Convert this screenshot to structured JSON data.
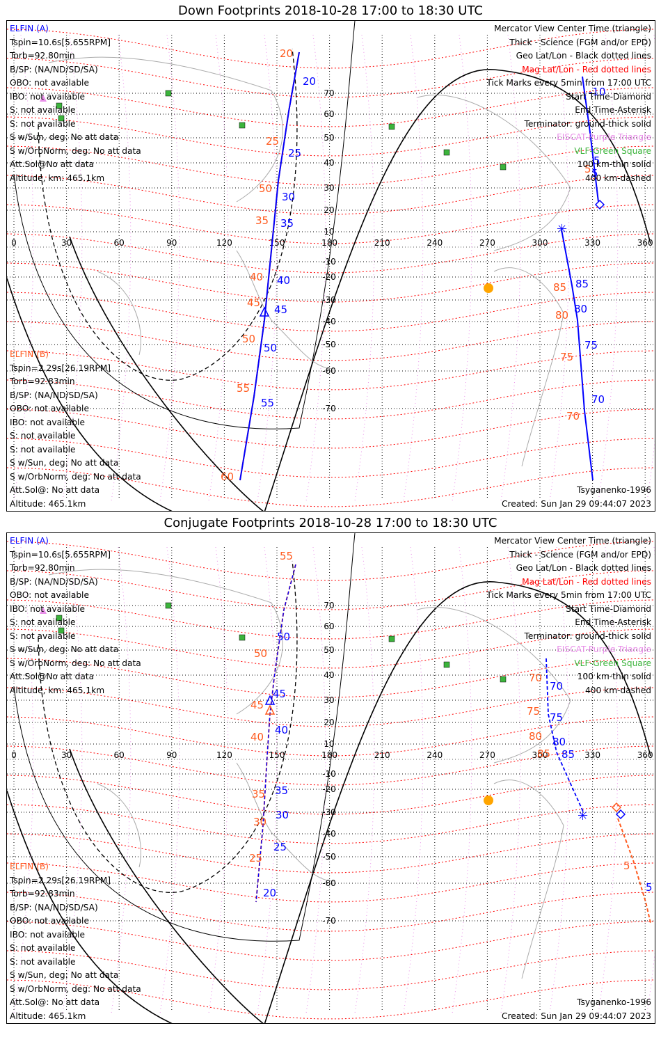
{
  "panels": [
    {
      "title": "Down Footprints 2018-10-28 17:00 to 18:30 UTC",
      "elfin_a": {
        "name": "ELFIN (A)",
        "lines": [
          "Tspin=10.6s[5.655RPM]",
          "Torb=92.80min",
          "B/SP: (NA/ND/SD/SA)",
          "OBO: not available",
          "IBO: not available",
          "S: not available",
          "S: not available",
          "S w/Sun, deg: No att data",
          "S w/OrbNorm, deg: No att data",
          "Att.Sol@No att data",
          "Altitude, km: 465.1km"
        ]
      },
      "elfin_b": {
        "name": "ELFIN (B)",
        "lines": [
          "Tspin=2.29s[26.19RPM]",
          "Torb=92.83min",
          "B/SP: (NA/ND/SD/SA)",
          "OBO: not available",
          "IBO: not available",
          "S: not available",
          "S: not available",
          "S w/Sun, deg: No att data",
          "S w/OrbNorm, deg: No att data",
          "Att.Sol@: No att data",
          "Altitude: 465.1km"
        ]
      },
      "legend": [
        {
          "text": "Mercator View Center Time (triangle)",
          "color": "#000000"
        },
        {
          "text": "Thick - Science (FGM and/or EPD)",
          "color": "#000000"
        },
        {
          "text": "Geo Lat/Lon - Black dotted lines",
          "color": "#000000"
        },
        {
          "text": "Mag Lat/Lon - Red dotted lines",
          "color": "#ff0000"
        },
        {
          "text": "Tick Marks every 5min from 17:00 UTC",
          "color": "#000000"
        },
        {
          "text": "Start Time-Diamond",
          "color": "#000000"
        },
        {
          "text": "End Time-Asterisk",
          "color": "#000000"
        },
        {
          "text": "Terminator: ground-thick solid",
          "color": "#000000"
        },
        {
          "text": "EISCAT-Purple Triangle",
          "color": "#e88fe8"
        },
        {
          "text": "VLF-Green Square",
          "color": "#3cb43c"
        },
        {
          "text": "100 km-thin solid",
          "color": "#000000"
        },
        {
          "text": "400 km-dashed",
          "color": "#000000"
        }
      ],
      "model": "Tsyganenko-1996",
      "created": "Created: Sun Jan 29 09:44:07 2023",
      "map": {
        "lon_ticks": [
          "0",
          "30",
          "60",
          "90",
          "120",
          "150",
          "180",
          "210",
          "240",
          "270",
          "300",
          "330",
          "360"
        ],
        "lat_ticks": [
          "70",
          "60",
          "50",
          "40",
          "30",
          "20",
          "10",
          "-10",
          "-20",
          "-30",
          "-40",
          "-50",
          "-60",
          "-70"
        ],
        "track_a_ticks": [
          "-10",
          "5",
          "5"
        ],
        "track_a_mag_ticks": [
          "5"
        ],
        "track_b_ticks": [
          "20",
          "25",
          "30",
          "35",
          "40",
          "45",
          "50",
          "55",
          "85",
          "80",
          "75",
          "70"
        ],
        "track_b_mag_ticks": [
          "20",
          "25",
          "50",
          "35",
          "40",
          "45",
          "50",
          "55",
          "60",
          "85",
          "80",
          "75",
          "70"
        ]
      }
    },
    {
      "title": "Conjugate Footprints 2018-10-28 17:00 to 18:30 UTC",
      "elfin_a": {
        "name": "ELFIN (A)",
        "lines": [
          "Tspin=10.6s[5.655RPM]",
          "Torb=92.80min",
          "B/SP: (NA/ND/SD/SA)",
          "OBO: not available",
          "IBO: not available",
          "S: not available",
          "S: not available",
          "S w/Sun, deg: No att data",
          "S w/OrbNorm, deg: No att data",
          "Att.Sol@No att data",
          "Altitude, km: 465.1km"
        ]
      },
      "elfin_b": {
        "name": "ELFIN (B)",
        "lines": [
          "Tspin=2.29s[26.19RPM]",
          "Torb=92.83min",
          "B/SP: (NA/ND/SD/SA)",
          "OBO: not available",
          "IBO: not available",
          "S: not available",
          "S: not available",
          "S w/Sun, deg: No att data",
          "S w/OrbNorm, deg: No att data",
          "Att.Sol@: No att data",
          "Altitude: 465.1km"
        ]
      },
      "legend": [
        {
          "text": "Mercator View Center Time (triangle)",
          "color": "#000000"
        },
        {
          "text": "Thick - Science (FGM and/or EPD)",
          "color": "#000000"
        },
        {
          "text": "Geo Lat/Lon - Black dotted lines",
          "color": "#000000"
        },
        {
          "text": "Mag Lat/Lon - Red dotted lines",
          "color": "#ff0000"
        },
        {
          "text": "Tick Marks every 5min from 17:00 UTC",
          "color": "#000000"
        },
        {
          "text": "Start Time-Diamond",
          "color": "#000000"
        },
        {
          "text": "End Time-Asterisk",
          "color": "#000000"
        },
        {
          "text": "Terminator: ground-thick solid",
          "color": "#000000"
        },
        {
          "text": "EISCAT-Purple Triangle",
          "color": "#e88fe8"
        },
        {
          "text": "VLF-Green Square",
          "color": "#3cb43c"
        },
        {
          "text": "100 km-thin solid",
          "color": "#000000"
        },
        {
          "text": "400 km-dashed",
          "color": "#000000"
        }
      ],
      "model": "Tsyganenko-1996",
      "created": "Created: Sun Jan 29 09:44:07 2023",
      "map": {
        "lon_ticks": [
          "0",
          "30",
          "60",
          "90",
          "120",
          "150",
          "180",
          "210",
          "240",
          "270",
          "300",
          "330",
          "360"
        ],
        "lat_ticks": [
          "70",
          "60",
          "50",
          "40",
          "30",
          "20",
          "10",
          "-10",
          "-20",
          "-30",
          "-40",
          "-50",
          "-60",
          "-70"
        ],
        "track_b_ticks": [
          "50",
          "45",
          "40",
          "35",
          "30",
          "25",
          "20",
          "70",
          "75",
          "80",
          "85",
          "5"
        ],
        "track_b_mag_ticks": [
          "55",
          "50",
          "45",
          "40",
          "35",
          "30",
          "25",
          "70",
          "75",
          "80",
          "85",
          "5"
        ]
      }
    }
  ],
  "colors": {
    "track_a": "#0000ff",
    "track_b": "#ff5a1e",
    "mag_grid": "#ff0000",
    "geo_grid": "#000000",
    "eiscat": "#e88fe8",
    "vlf": "#3cb43c",
    "sun": "#ffa500"
  }
}
